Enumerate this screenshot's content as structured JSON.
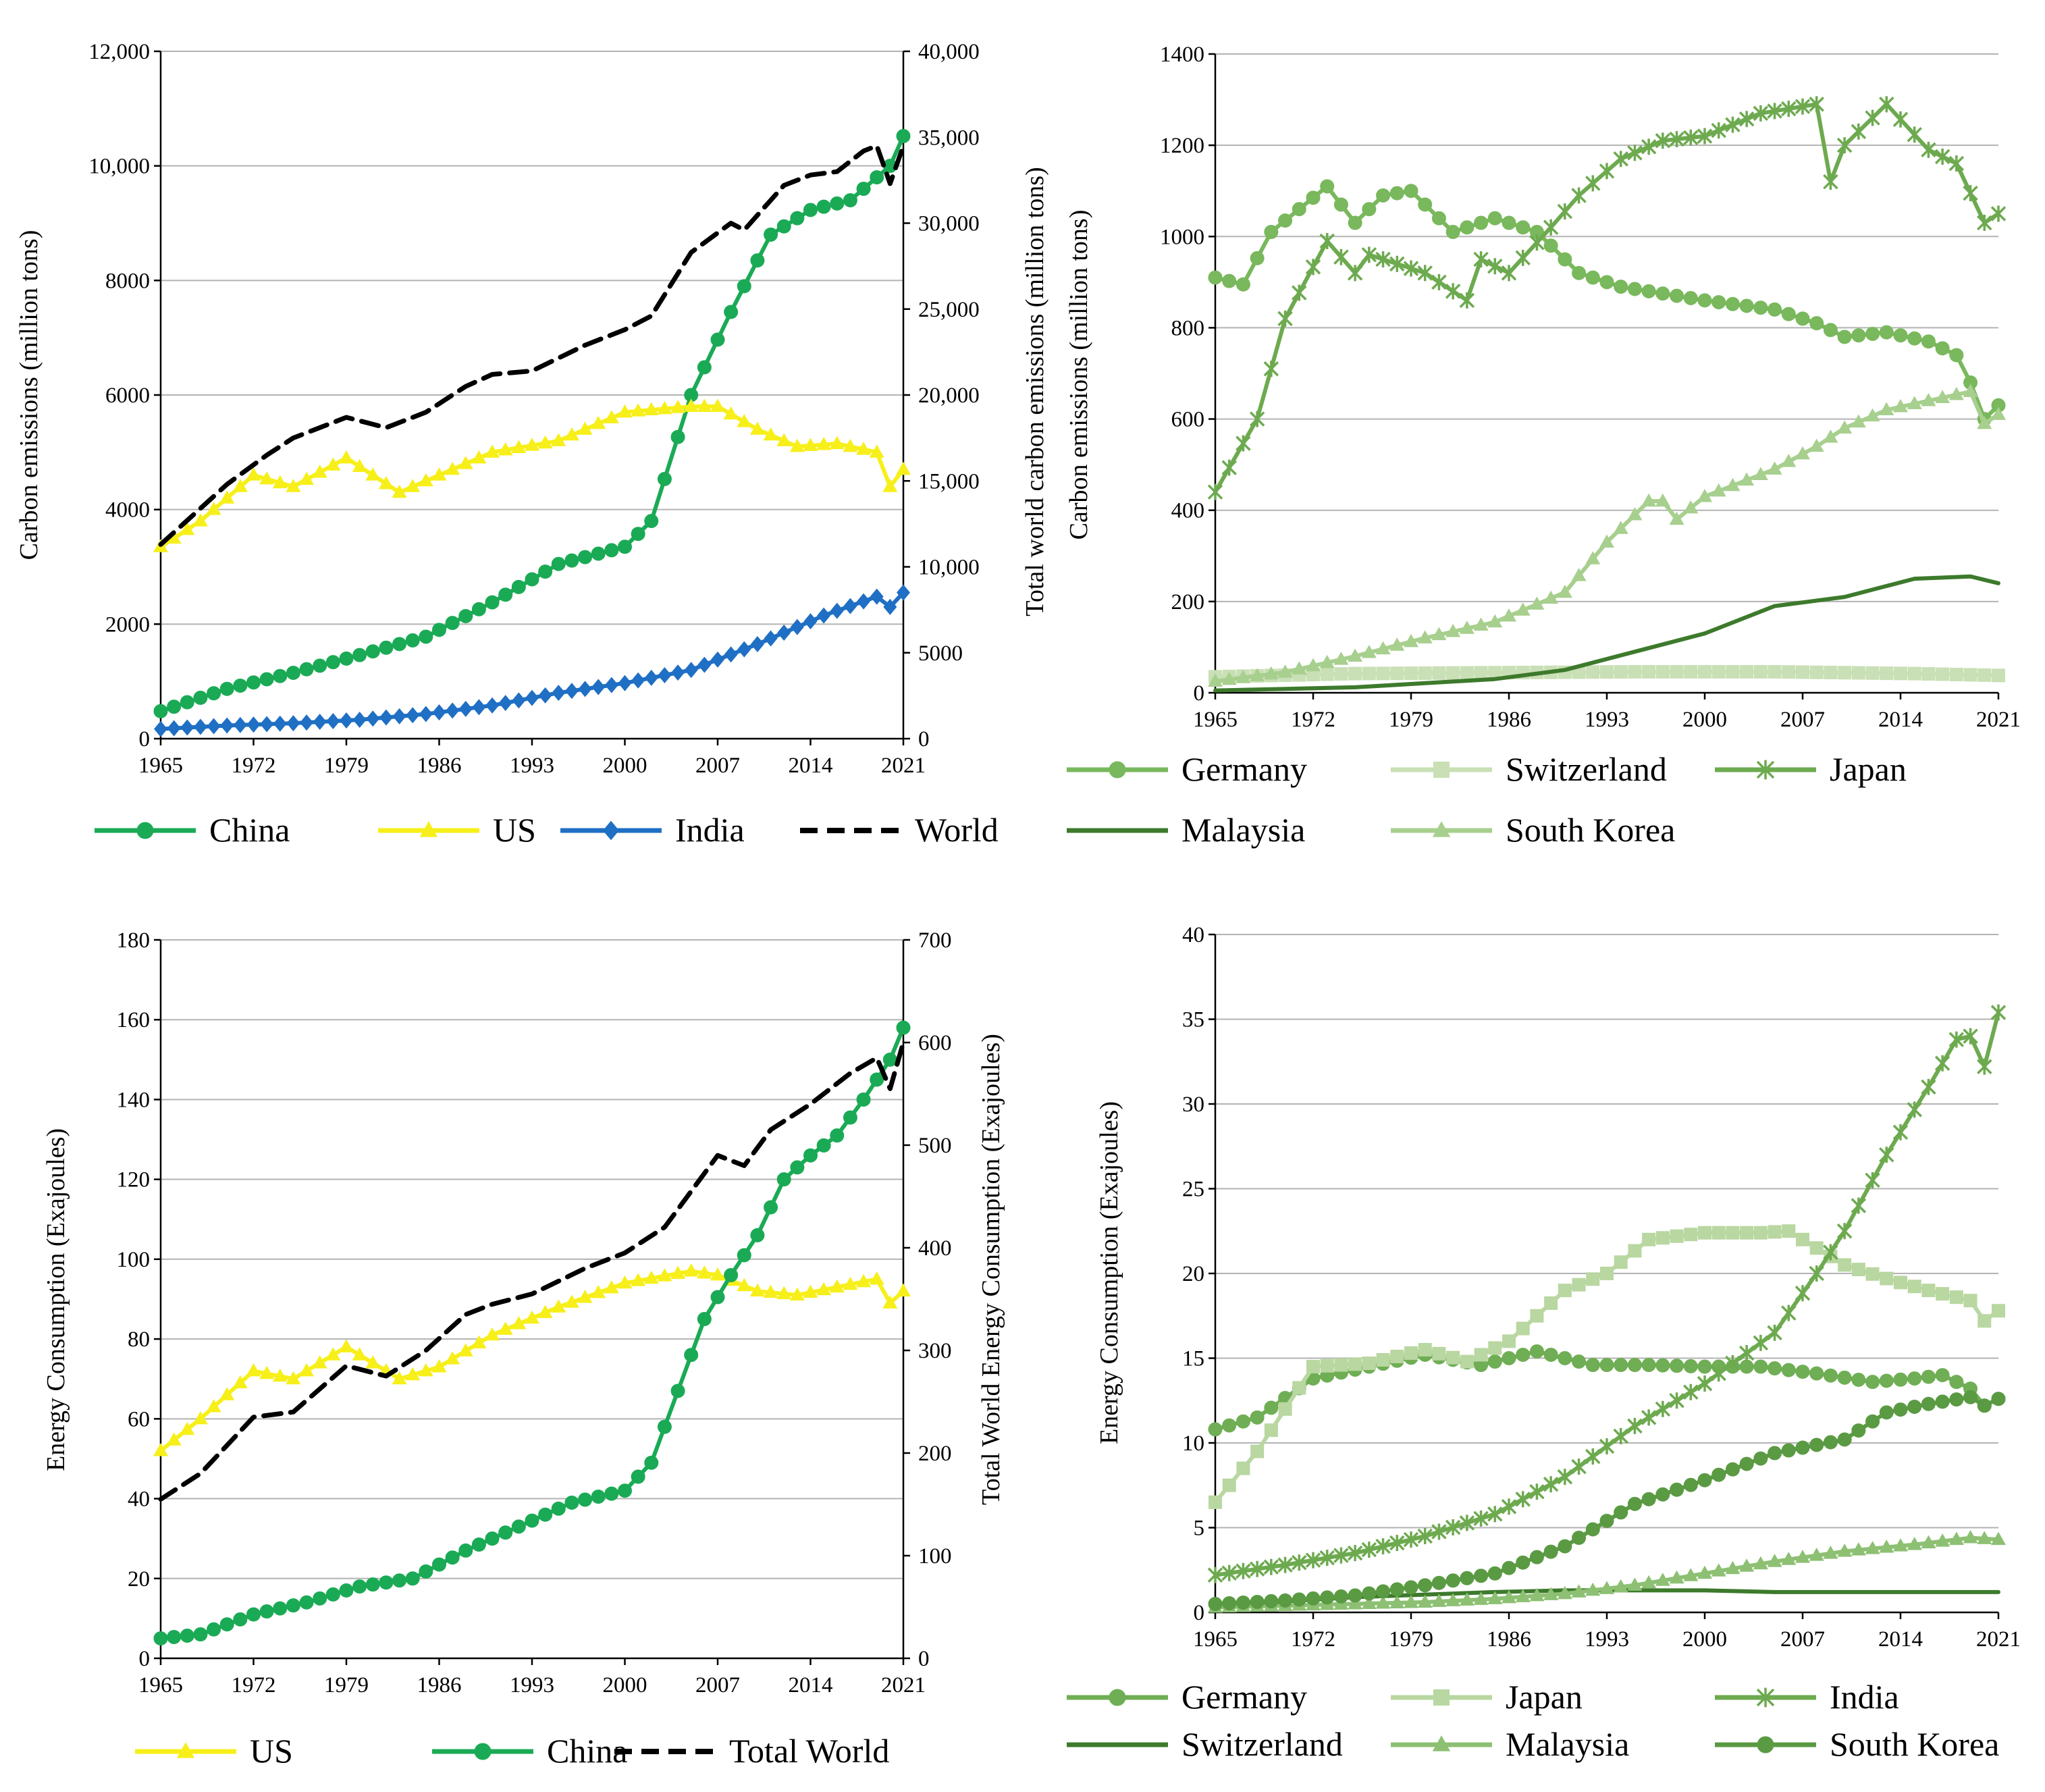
{
  "chart_data": [
    {
      "id": "tl",
      "type": "line",
      "title": "",
      "xlabel": "",
      "ylabel": "Carbon emissions (million tons)",
      "y2label": "Total world carbon emissions (million tons)",
      "xlim": [
        1965,
        2021
      ],
      "ylim": [
        0,
        12000
      ],
      "y2lim": [
        0,
        40000
      ],
      "xticks": [
        "1965",
        "1972",
        "1979",
        "1986",
        "1993",
        "2000",
        "2007",
        "2014",
        "2021"
      ],
      "yticks": [
        "0",
        "2000",
        "4000",
        "6000",
        "8000",
        "10,000",
        "12,000"
      ],
      "y2ticks": [
        "0",
        "5000",
        "10,000",
        "15,000",
        "20,000",
        "25,000",
        "30,000",
        "35,000",
        "40,000"
      ],
      "grid": true,
      "legend_placement": "bottom",
      "series": [
        {
          "name": "China",
          "color": "#1aaa55",
          "marker": "circle",
          "axis": "left",
          "x": [
            1965,
            1970,
            1975,
            1980,
            1985,
            1990,
            1995,
            2000,
            2002,
            2005,
            2008,
            2011,
            2014,
            2017,
            2020,
            2021
          ],
          "values": [
            480,
            870,
            1150,
            1460,
            1780,
            2380,
            3050,
            3350,
            3800,
            6000,
            7450,
            8800,
            9230,
            9400,
            10000,
            10520
          ]
        },
        {
          "name": "US",
          "color": "#f7ef1a",
          "marker": "triangle",
          "axis": "left",
          "x": [
            1965,
            1968,
            1972,
            1975,
            1979,
            1983,
            1986,
            1990,
            1995,
            2000,
            2005,
            2007,
            2010,
            2013,
            2016,
            2019,
            2020,
            2021
          ],
          "values": [
            3350,
            3800,
            4600,
            4400,
            4900,
            4300,
            4600,
            5000,
            5200,
            5700,
            5800,
            5800,
            5400,
            5100,
            5150,
            5000,
            4400,
            4700
          ]
        },
        {
          "name": "India",
          "color": "#1f6fc4",
          "marker": "diamond",
          "axis": "left",
          "x": [
            1965,
            1970,
            1975,
            1980,
            1985,
            1990,
            1995,
            2000,
            2005,
            2010,
            2015,
            2019,
            2020,
            2021
          ],
          "values": [
            170,
            230,
            270,
            330,
            430,
            580,
            800,
            970,
            1200,
            1650,
            2150,
            2480,
            2300,
            2550
          ]
        },
        {
          "name": "World",
          "color": "#000000",
          "marker": "none",
          "dash": true,
          "axis": "right",
          "x": [
            1965,
            1970,
            1973,
            1975,
            1979,
            1982,
            1985,
            1988,
            1990,
            1993,
            1997,
            2000,
            2002,
            2005,
            2008,
            2009,
            2012,
            2014,
            2016,
            2018,
            2019,
            2020,
            2021
          ],
          "values": [
            11300,
            14800,
            16500,
            17500,
            18700,
            18100,
            19000,
            20500,
            21200,
            21400,
            22900,
            23800,
            24600,
            28300,
            30000,
            29600,
            32200,
            32800,
            33000,
            34200,
            34500,
            32300,
            34500
          ]
        }
      ]
    },
    {
      "id": "tr",
      "type": "line",
      "title": "",
      "xlabel": "",
      "ylabel": "Carbon emissions (million tons)",
      "xlim": [
        1965,
        2021
      ],
      "ylim": [
        0,
        1400
      ],
      "xticks": [
        "1965",
        "1972",
        "1979",
        "1986",
        "1993",
        "2000",
        "2007",
        "2014",
        "2021"
      ],
      "yticks": [
        "0",
        "200",
        "400",
        "600",
        "800",
        "1000",
        "1200",
        "1400"
      ],
      "grid": true,
      "legend_placement": "bottom",
      "series": [
        {
          "name": "Germany",
          "color": "#79b85c",
          "marker": "circle",
          "x": [
            1965,
            1967,
            1969,
            1973,
            1975,
            1977,
            1979,
            1982,
            1985,
            1988,
            1991,
            1994,
            2000,
            2005,
            2008,
            2010,
            2013,
            2016,
            2018,
            2019,
            2020,
            2021
          ],
          "values": [
            910,
            895,
            1010,
            1110,
            1030,
            1090,
            1100,
            1010,
            1040,
            1010,
            920,
            890,
            860,
            840,
            810,
            780,
            790,
            770,
            740,
            680,
            600,
            630
          ]
        },
        {
          "name": "Switzerland",
          "color": "#c9dfb5",
          "marker": "square",
          "x": [
            1965,
            1975,
            1985,
            1995,
            2005,
            2015,
            2021
          ],
          "values": [
            35,
            42,
            44,
            46,
            46,
            42,
            38
          ]
        },
        {
          "name": "Japan",
          "color": "#6daa4f",
          "marker": "cross",
          "x": [
            1965,
            1968,
            1970,
            1973,
            1975,
            1976,
            1980,
            1983,
            1984,
            1986,
            1989,
            1991,
            1994,
            1997,
            2000,
            2004,
            2006,
            2008,
            2009,
            2010,
            2013,
            2016,
            2018,
            2020,
            2021
          ],
          "values": [
            440,
            600,
            820,
            990,
            920,
            960,
            920,
            860,
            950,
            920,
            1020,
            1090,
            1170,
            1210,
            1220,
            1270,
            1280,
            1290,
            1120,
            1200,
            1290,
            1190,
            1160,
            1030,
            1050
          ]
        },
        {
          "name": "Malaysia",
          "color": "#3d7a2c",
          "marker": "none",
          "x": [
            1965,
            1975,
            1985,
            1990,
            1995,
            2000,
            2005,
            2010,
            2015,
            2019,
            2021
          ],
          "values": [
            5,
            12,
            30,
            50,
            90,
            130,
            190,
            210,
            250,
            255,
            240
          ]
        },
        {
          "name": "South Korea",
          "color": "#a7cf8e",
          "marker": "triangle",
          "x": [
            1965,
            1970,
            1975,
            1980,
            1985,
            1990,
            1993,
            1996,
            1997,
            1998,
            2000,
            2005,
            2008,
            2010,
            2013,
            2016,
            2019,
            2020,
            2021
          ],
          "values": [
            25,
            45,
            80,
            120,
            155,
            220,
            330,
            420,
            420,
            380,
            430,
            490,
            540,
            580,
            620,
            640,
            660,
            590,
            610
          ]
        }
      ]
    },
    {
      "id": "bl",
      "type": "line",
      "title": "",
      "xlabel": "",
      "ylabel": "Energy Consumption (Exajoules)",
      "y2label": "Total World Energy Consumption (Exajoules)",
      "xlim": [
        1965,
        2021
      ],
      "ylim": [
        0,
        180
      ],
      "y2lim": [
        0,
        700
      ],
      "xticks": [
        "1965",
        "1972",
        "1979",
        "1986",
        "1993",
        "2000",
        "2007",
        "2014",
        "2021"
      ],
      "yticks": [
        "0",
        "20",
        "40",
        "60",
        "80",
        "100",
        "120",
        "140",
        "160",
        "180"
      ],
      "y2ticks": [
        "0",
        "100",
        "200",
        "300",
        "400",
        "500",
        "600",
        "700"
      ],
      "grid": true,
      "legend_placement": "bottom",
      "series": [
        {
          "name": "US",
          "color": "#f7ef1a",
          "marker": "triangle",
          "axis": "left",
          "x": [
            1965,
            1968,
            1972,
            1975,
            1979,
            1983,
            1986,
            1990,
            1995,
            2000,
            2005,
            2007,
            2010,
            2013,
            2016,
            2019,
            2020,
            2021
          ],
          "values": [
            52,
            60,
            72,
            70,
            78,
            70,
            73,
            81,
            88,
            94,
            97,
            96,
            92,
            91,
            93,
            95,
            89,
            92
          ]
        },
        {
          "name": "China",
          "color": "#1aaa55",
          "marker": "circle",
          "axis": "left",
          "x": [
            1965,
            1968,
            1972,
            1976,
            1980,
            1984,
            1988,
            1992,
            1996,
            2000,
            2002,
            2004,
            2006,
            2008,
            2010,
            2012,
            2014,
            2016,
            2018,
            2020,
            2021
          ],
          "values": [
            5,
            6,
            11,
            14,
            18,
            20,
            27,
            33,
            39,
            42,
            49,
            67,
            85,
            96,
            106,
            120,
            126,
            131,
            140,
            150,
            158
          ]
        },
        {
          "name": "Total World",
          "color": "#000000",
          "marker": "none",
          "dash": true,
          "axis": "right",
          "x": [
            1965,
            1968,
            1972,
            1975,
            1979,
            1982,
            1985,
            1988,
            1990,
            1993,
            1997,
            2000,
            2003,
            2007,
            2009,
            2011,
            2014,
            2017,
            2019,
            2020,
            2021
          ],
          "values": [
            155,
            180,
            235,
            240,
            285,
            275,
            300,
            335,
            345,
            355,
            380,
            395,
            420,
            490,
            480,
            515,
            540,
            570,
            585,
            555,
            600
          ]
        }
      ]
    },
    {
      "id": "br",
      "type": "line",
      "title": "",
      "xlabel": "",
      "ylabel": "Energy Consumption (Exajoules)",
      "xlim": [
        1965,
        2021
      ],
      "ylim": [
        0,
        40
      ],
      "xticks": [
        "1965",
        "1972",
        "1979",
        "1986",
        "1993",
        "2000",
        "2007",
        "2014",
        "2021"
      ],
      "yticks": [
        "0",
        "5",
        "10",
        "15",
        "20",
        "25",
        "30",
        "35",
        "40"
      ],
      "grid": true,
      "legend_placement": "bottom",
      "series": [
        {
          "name": "Germany",
          "color": "#6fae54",
          "marker": "circle",
          "x": [
            1965,
            1968,
            1972,
            1976,
            1980,
            1984,
            1988,
            1992,
            1996,
            2000,
            2004,
            2008,
            2012,
            2015,
            2017,
            2019,
            2020,
            2021
          ],
          "values": [
            10.8,
            11.5,
            13.8,
            14.5,
            15.2,
            14.6,
            15.4,
            14.6,
            14.6,
            14.5,
            14.5,
            14.1,
            13.6,
            13.8,
            14.0,
            13.2,
            12.2,
            12.6
          ]
        },
        {
          "name": "Japan",
          "color": "#b9d7a1",
          "marker": "square",
          "x": [
            1965,
            1968,
            1972,
            1976,
            1980,
            1983,
            1986,
            1990,
            1993,
            1996,
            2000,
            2004,
            2006,
            2008,
            2010,
            2013,
            2016,
            2019,
            2020,
            2021
          ],
          "values": [
            6.5,
            9.5,
            14.5,
            14.7,
            15.5,
            14.8,
            16.0,
            19.0,
            20.0,
            22.0,
            22.4,
            22.4,
            22.5,
            21.5,
            20.5,
            19.7,
            19.0,
            18.4,
            17.2,
            17.8
          ]
        },
        {
          "name": "India",
          "color": "#6daa4f",
          "marker": "cross",
          "x": [
            1965,
            1970,
            1975,
            1980,
            1985,
            1990,
            1995,
            2000,
            2005,
            2008,
            2010,
            2013,
            2016,
            2018,
            2019,
            2020,
            2021
          ],
          "values": [
            2.2,
            2.8,
            3.5,
            4.5,
            5.8,
            8.0,
            11.0,
            13.5,
            16.5,
            20.0,
            22.5,
            27.0,
            31.0,
            33.8,
            34.0,
            32.2,
            35.4
          ]
        },
        {
          "name": "Switzerland",
          "color": "#3d7a2c",
          "marker": "none",
          "x": [
            1965,
            1975,
            1985,
            1990,
            1995,
            2000,
            2005,
            2010,
            2015,
            2021
          ],
          "values": [
            0.4,
            0.9,
            1.2,
            1.3,
            1.3,
            1.3,
            1.2,
            1.2,
            1.2,
            1.2
          ]
        },
        {
          "name": "Malaysia",
          "color": "#8dc073",
          "marker": "triangle",
          "x": [
            1965,
            1970,
            1975,
            1980,
            1985,
            1990,
            1995,
            2000,
            2005,
            2010,
            2015,
            2019,
            2021
          ],
          "values": [
            0.3,
            0.4,
            0.5,
            0.6,
            0.8,
            1.1,
            1.6,
            2.3,
            3.0,
            3.6,
            4.0,
            4.4,
            4.3
          ]
        },
        {
          "name": "South Korea",
          "color": "#5a9a43",
          "marker": "circle",
          "x": [
            1965,
            1970,
            1975,
            1980,
            1985,
            1990,
            1995,
            2000,
            2005,
            2010,
            2013,
            2016,
            2019,
            2020,
            2021
          ],
          "values": [
            0.5,
            0.7,
            1.0,
            1.6,
            2.3,
            3.9,
            6.4,
            7.8,
            9.4,
            10.2,
            11.8,
            12.3,
            12.7,
            12.2,
            12.6
          ]
        }
      ]
    }
  ]
}
